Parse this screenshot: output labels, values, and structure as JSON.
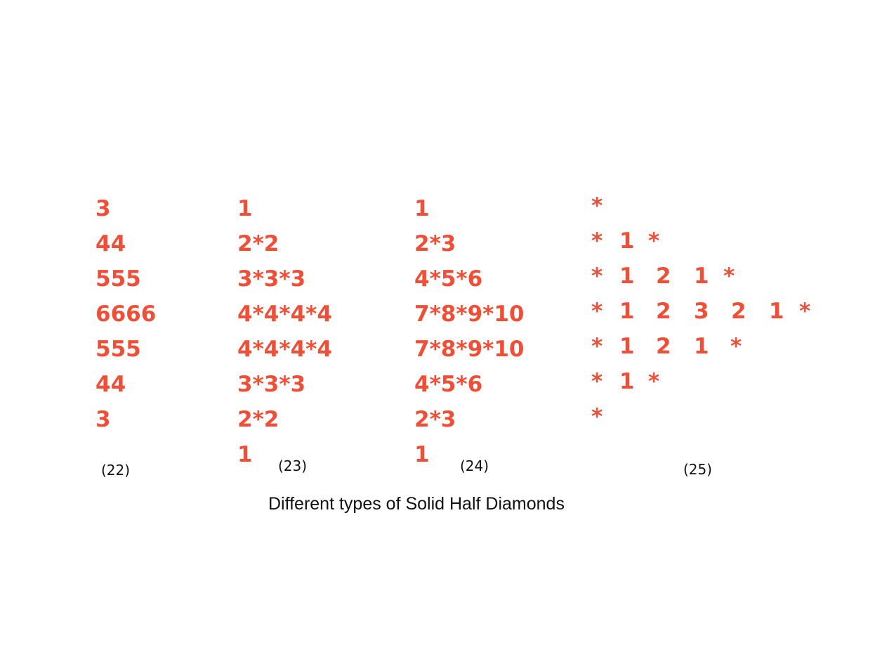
{
  "accent_color": "#ef4f37",
  "patterns": {
    "p22": {
      "label": "(22)",
      "rows": [
        "3",
        "44",
        "555",
        "6666",
        "555",
        "44",
        "3"
      ]
    },
    "p23": {
      "label": "(23)",
      "rows": [
        "1",
        "2*2",
        "3*3*3",
        "4*4*4*4",
        "4*4*4*4",
        "3*3*3",
        "2*2",
        "1"
      ]
    },
    "p24": {
      "label": "(24)",
      "rows": [
        "1",
        "2*3",
        "4*5*6",
        "7*8*9*10",
        "7*8*9*10",
        "4*5*6",
        "2*3",
        "1"
      ]
    },
    "p25": {
      "label": "(25)",
      "rows": [
        [
          "*"
        ],
        [
          "*",
          "1",
          "*"
        ],
        [
          "*",
          "1",
          "2",
          "1",
          "*"
        ],
        [
          "*",
          "1",
          "2",
          "3",
          "2",
          "1",
          "*"
        ],
        [
          "*",
          "1",
          "2",
          "1",
          "*"
        ],
        [
          "*",
          "1",
          "*"
        ],
        [
          "*"
        ]
      ]
    }
  },
  "caption": "Different types of Solid Half Diamonds"
}
